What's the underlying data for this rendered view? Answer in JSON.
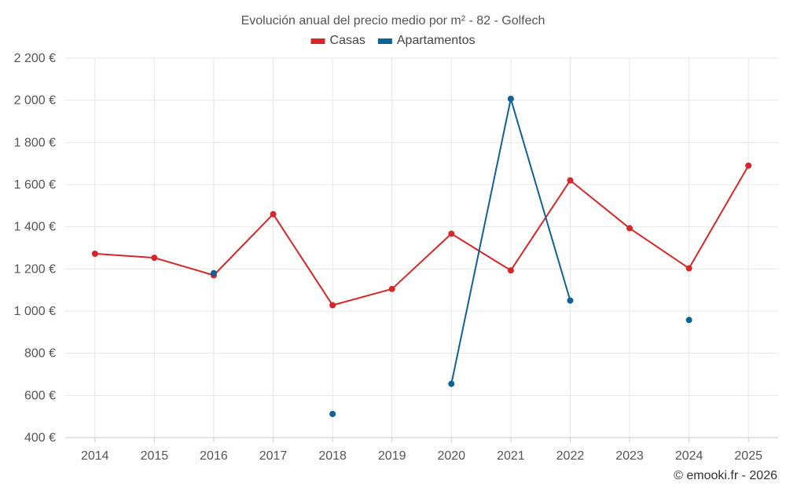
{
  "chart_data": {
    "type": "line",
    "title": "Evolución anual del precio medio por m² - 82 - Golfech",
    "categories": [
      "2014",
      "2015",
      "2016",
      "2017",
      "2018",
      "2019",
      "2020",
      "2021",
      "2022",
      "2023",
      "2024",
      "2025"
    ],
    "ylim": [
      400,
      2200
    ],
    "yticks": [
      400,
      600,
      800,
      1000,
      1200,
      1400,
      1600,
      1800,
      2000,
      2200
    ],
    "ytick_labels": [
      "400 €",
      "600 €",
      "800 €",
      "1 000 €",
      "1 200 €",
      "1 400 €",
      "1 600 €",
      "1 800 €",
      "2 000 €",
      "2 200 €"
    ],
    "grid": true,
    "legend_position": "top-center",
    "series": [
      {
        "name": "Casas",
        "color": "#d62728",
        "values": [
          1272,
          1253,
          1170,
          1460,
          1028,
          1105,
          1367,
          1193,
          1620,
          1393,
          1203,
          1690
        ]
      },
      {
        "name": "Apartamentos",
        "color": "#0d6296",
        "values": [
          null,
          null,
          1180,
          null,
          512,
          null,
          655,
          2007,
          1050,
          null,
          958,
          null
        ]
      }
    ],
    "credit": "© emooki.fr - 2026"
  }
}
